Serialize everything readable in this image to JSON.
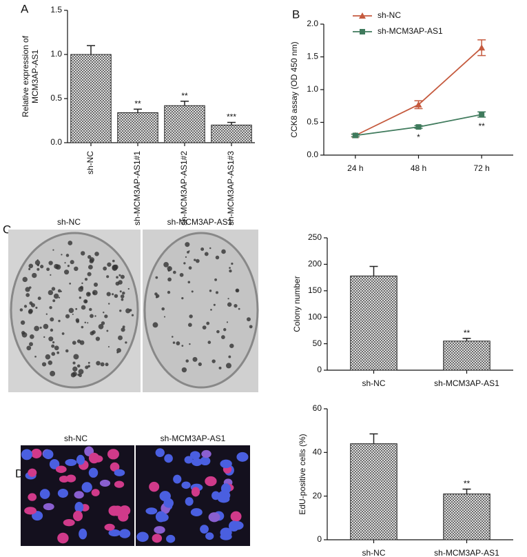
{
  "panel_labels": [
    "A",
    "B",
    "C",
    "D"
  ],
  "images": [
    {
      "panel": "C",
      "labels": [
        "sh-NC",
        "sh-MCM3AP-AS1"
      ]
    },
    {
      "panel": "D",
      "labels": [
        "sh-NC",
        "sh-MCM3AP-AS1"
      ]
    }
  ],
  "chart_data": [
    {
      "type": "bar",
      "ylabel": [
        "Relative expression of",
        "MCM3AP-AS1"
      ],
      "categories": [
        "sh-NC",
        "sh-MCM3AP-AS1#1",
        "sh-MCM3AP-AS1#2",
        "sh-MCM3AP-AS1#3"
      ],
      "values": [
        1.0,
        0.34,
        0.42,
        0.2
      ],
      "errors": [
        0.1,
        0.04,
        0.05,
        0.03
      ],
      "annotations": [
        null,
        "**",
        "**",
        "***"
      ],
      "ylim": [
        0,
        1.5
      ],
      "yticks": [
        {
          "value": 0,
          "label": "0.0"
        },
        0.5,
        {
          "value": 1,
          "label": "1.0"
        },
        1.5
      ],
      "color": "#9a9a9a"
    },
    {
      "type": "line",
      "ylabel": "CCK8 assay (OD 450 nm)",
      "categories": [
        "24 h",
        "48 h",
        "72 h"
      ],
      "series": [
        {
          "name": "sh-NC",
          "color": "#c55a3e",
          "marker": "triangle",
          "values": [
            0.3,
            0.77,
            1.64
          ],
          "errors": [
            0.02,
            0.06,
            0.12
          ],
          "annotations": [
            null,
            null,
            null
          ]
        },
        {
          "name": "sh-MCM3AP-AS1",
          "color": "#3f7a5c",
          "marker": "square",
          "values": [
            0.3,
            0.43,
            0.62
          ],
          "errors": [
            0.02,
            0.02,
            0.04
          ],
          "annotations": [
            null,
            "*",
            "**"
          ]
        }
      ],
      "ylim": [
        0,
        2
      ],
      "yticks": [
        {
          "value": 0,
          "label": "0.0"
        },
        0.5,
        {
          "value": 1,
          "label": "1.0"
        },
        1.5,
        {
          "value": 2,
          "label": "2.0"
        }
      ]
    },
    {
      "type": "bar",
      "ylabel": "Colony number",
      "categories": [
        "sh-NC",
        "sh-MCM3AP-AS1"
      ],
      "values": [
        178,
        55
      ],
      "errors": [
        18,
        5
      ],
      "annotations": [
        null,
        "**"
      ],
      "ylim": [
        0,
        250
      ],
      "yticks": [
        0,
        50,
        100,
        150,
        200,
        250
      ],
      "color": "#9a9a9a"
    },
    {
      "type": "bar",
      "ylabel": "EdU-positive cells (%)",
      "categories": [
        "sh-NC",
        "sh-MCM3AP-AS1"
      ],
      "values": [
        44,
        21
      ],
      "errors": [
        4.5,
        2.2
      ],
      "annotations": [
        null,
        "**"
      ],
      "ylim": [
        0,
        60
      ],
      "yticks": [
        0,
        20,
        40,
        60
      ],
      "color": "#9a9a9a"
    }
  ]
}
